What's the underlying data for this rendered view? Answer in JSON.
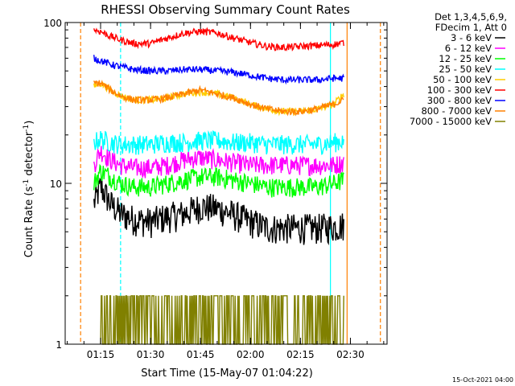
{
  "chart_data": {
    "type": "line",
    "title": "RHESSI Observing Summary Count Rates",
    "xlabel": "Start Time (15-May-07 01:04:22)",
    "ylabel": "Count Rate (s",
    "ylabel_sup": "-1",
    "ylabel_rest": " detector",
    "ylabel_sup2": "-1",
    "ylabel_close": ")",
    "y_scale": "log",
    "ylim": [
      1,
      100
    ],
    "xlim": [
      "01:04:22",
      "02:41:00"
    ],
    "x_ticks": [
      "01:15",
      "01:30",
      "01:45",
      "02:00",
      "02:15",
      "02:30"
    ],
    "y_ticks": [
      "1",
      "10",
      "100"
    ],
    "grid": false,
    "legend_position": "top-right",
    "legend_header": [
      "Det 1,3,4,5,6,9,",
      "FDecim 1, Att 0"
    ],
    "timestamp": "15-Oct-2021 04:00",
    "series": [
      {
        "name": "3 - 6 keV",
        "color": "#000000",
        "t": [
          "01:13:00",
          "01:15:00",
          "01:18:00",
          "01:21:00",
          "01:25:00",
          "01:30:00",
          "01:35:00",
          "01:40:00",
          "01:45:00",
          "01:50:00",
          "01:55:00",
          "02:00:00",
          "02:05:00",
          "02:10:00",
          "02:15:00",
          "02:20:00",
          "02:25:00",
          "02:28:00"
        ],
        "values": [
          7.5,
          9.5,
          7.5,
          6.5,
          6,
          5.8,
          6.2,
          6.5,
          7.2,
          7,
          6.4,
          5.8,
          5.3,
          5.3,
          5.3,
          5.3,
          5.4,
          5.5
        ]
      },
      {
        "name": "6 - 12 keV",
        "color": "#ff00ff",
        "t": [
          "01:13:00",
          "01:15:00",
          "01:18:00",
          "01:21:00",
          "01:25:00",
          "01:30:00",
          "01:35:00",
          "01:40:00",
          "01:45:00",
          "01:50:00",
          "01:55:00",
          "02:00:00",
          "02:05:00",
          "02:10:00",
          "02:15:00",
          "02:20:00",
          "02:25:00",
          "02:28:00"
        ],
        "values": [
          13,
          16,
          14,
          13,
          12.5,
          12.5,
          13,
          14,
          14.5,
          14,
          13.5,
          13,
          13,
          13,
          13,
          13,
          13,
          13.5
        ]
      },
      {
        "name": "12 - 25 keV",
        "color": "#00ff00",
        "t": [
          "01:13:00",
          "01:15:00",
          "01:18:00",
          "01:21:00",
          "01:25:00",
          "01:30:00",
          "01:35:00",
          "01:40:00",
          "01:45:00",
          "01:50:00",
          "01:55:00",
          "02:00:00",
          "02:05:00",
          "02:10:00",
          "02:15:00",
          "02:20:00",
          "02:25:00",
          "02:28:00"
        ],
        "values": [
          10,
          12,
          11,
          10,
          9.5,
          9.5,
          10,
          10.5,
          11,
          11,
          10.5,
          10,
          9.5,
          9.5,
          9.5,
          9.5,
          10,
          10.5
        ]
      },
      {
        "name": "25 - 50 keV",
        "color": "#00ffff",
        "t": [
          "01:13:00",
          "01:15:00",
          "01:18:00",
          "01:21:00",
          "01:25:00",
          "01:30:00",
          "01:35:00",
          "01:40:00",
          "01:45:00",
          "01:50:00",
          "01:55:00",
          "02:00:00",
          "02:05:00",
          "02:10:00",
          "02:15:00",
          "02:20:00",
          "02:25:00",
          "02:28:00"
        ],
        "values": [
          18,
          19,
          18,
          17.5,
          17.5,
          17.5,
          18,
          18,
          18.5,
          18.5,
          18,
          18,
          17.5,
          17.5,
          17.5,
          17.5,
          18,
          18.5
        ]
      },
      {
        "name": "50 - 100 keV",
        "color": "#ffcc00",
        "t": [
          "01:13:00",
          "01:15:00",
          "01:18:00",
          "01:21:00",
          "01:25:00",
          "01:30:00",
          "01:35:00",
          "01:40:00",
          "01:45:00",
          "01:50:00",
          "01:55:00",
          "02:00:00",
          "02:05:00",
          "02:10:00",
          "02:15:00",
          "02:20:00",
          "02:25:00",
          "02:28:00"
        ],
        "values": [
          40,
          42,
          38,
          35,
          33,
          33,
          34,
          36,
          37,
          36,
          34,
          31,
          29,
          28,
          28,
          29,
          31,
          36
        ]
      },
      {
        "name": "100 - 300 keV",
        "color": "#ff0000",
        "t": [
          "01:13:00",
          "01:15:00",
          "01:18:00",
          "01:21:00",
          "01:25:00",
          "01:30:00",
          "01:35:00",
          "01:40:00",
          "01:45:00",
          "01:50:00",
          "01:55:00",
          "02:00:00",
          "02:05:00",
          "02:10:00",
          "02:15:00",
          "02:20:00",
          "02:25:00",
          "02:28:00"
        ],
        "values": [
          90,
          88,
          82,
          78,
          74,
          74,
          80,
          86,
          88,
          86,
          80,
          75,
          71,
          70,
          71,
          72,
          73,
          75
        ]
      },
      {
        "name": "300 - 800 keV",
        "color": "#0000ff",
        "t": [
          "01:13:00",
          "01:15:00",
          "01:18:00",
          "01:21:00",
          "01:25:00",
          "01:30:00",
          "01:35:00",
          "01:40:00",
          "01:45:00",
          "01:50:00",
          "01:55:00",
          "02:00:00",
          "02:05:00",
          "02:10:00",
          "02:15:00",
          "02:20:00",
          "02:25:00",
          "02:28:00"
        ],
        "values": [
          60,
          58,
          55,
          53,
          51,
          50,
          50,
          51,
          51,
          50,
          49,
          47,
          45,
          44,
          44,
          44,
          45,
          45
        ]
      },
      {
        "name": "800 - 7000 keV",
        "color": "#ff8000",
        "t": [
          "01:13:00",
          "01:15:00",
          "01:18:00",
          "01:21:00",
          "01:25:00",
          "01:30:00",
          "01:35:00",
          "01:40:00",
          "01:45:00",
          "01:50:00",
          "01:55:00",
          "02:00:00",
          "02:05:00",
          "02:10:00",
          "02:15:00",
          "02:20:00",
          "02:25:00",
          "02:28:00"
        ],
        "values": [
          42,
          42,
          38,
          35,
          33,
          33,
          34,
          36,
          38,
          36,
          34,
          31,
          29,
          28,
          28,
          29,
          31,
          33
        ]
      },
      {
        "name": "7000 - 15000 keV",
        "color": "#808000",
        "t": [
          "01:15:00",
          "01:25:00",
          "01:35:00",
          "01:40:00",
          "01:45:00",
          "01:50:00",
          "02:00:00",
          "02:10:00",
          "02:20:00",
          "02:28:00"
        ],
        "values": [
          2,
          1,
          1.5,
          2,
          2,
          2,
          1.5,
          1.5,
          2,
          2
        ]
      }
    ],
    "markers": [
      {
        "t": "01:09:00",
        "color": "#ff8000",
        "style": "dashed"
      },
      {
        "t": "01:21:00",
        "color": "#00ffff",
        "style": "dashed"
      },
      {
        "t": "02:24:00",
        "color": "#00ffff",
        "style": "solid"
      },
      {
        "t": "02:29:00",
        "color": "#ff8000",
        "style": "solid"
      },
      {
        "t": "02:39:00",
        "color": "#ff8000",
        "style": "dashed"
      }
    ]
  }
}
